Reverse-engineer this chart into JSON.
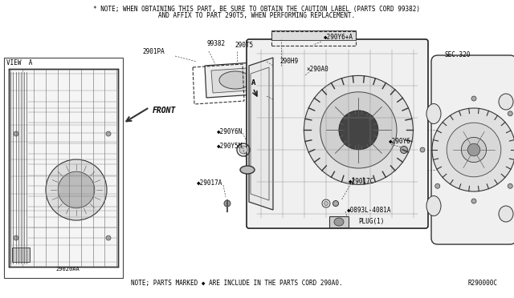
{
  "bg_color": "#ffffff",
  "line_color": "#444444",
  "text_color": "#000000",
  "fig_width": 6.4,
  "fig_height": 3.72,
  "dpi": 100,
  "top_note_line1": "* NOTE; WHEN OBTAINING THIS PART, BE SURE TO OBTAIN THE CAUTION LABEL (PARTS CORD 99382)",
  "top_note_line2": "AND AFFIX TO PART 290T5, WHEN PERFORMING REPLACEMENT.",
  "bottom_note": "NOTE; PARTS MARKED ◆ ARE INCLUDE IN THE PARTS CORD 290A0.",
  "ref_code": "R290000C",
  "sec_label": "SEC.320",
  "view_label": "VIEW  A",
  "front_label": "FRONT"
}
